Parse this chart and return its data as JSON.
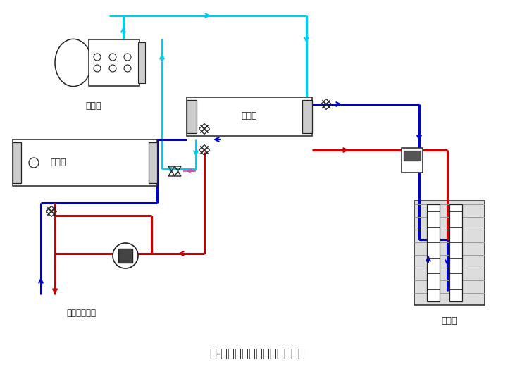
{
  "title": "水-水热泵机组冬季制热流程图",
  "title_fontsize": 12,
  "bg_color": "#ffffff",
  "cyan_color": "#00ccee",
  "red_color": "#cc0000",
  "blue_color": "#0000cc",
  "dark_color": "#222222",
  "gray_color": "#888888",
  "label_compressor": "压缩机",
  "label_condenser": "冷凝器",
  "label_evaporator": "蒸发器",
  "label_deep_well": "深水井",
  "label_terminal": "接至末端设备",
  "lw_pipe": 2.2,
  "lw_thin": 1.0
}
